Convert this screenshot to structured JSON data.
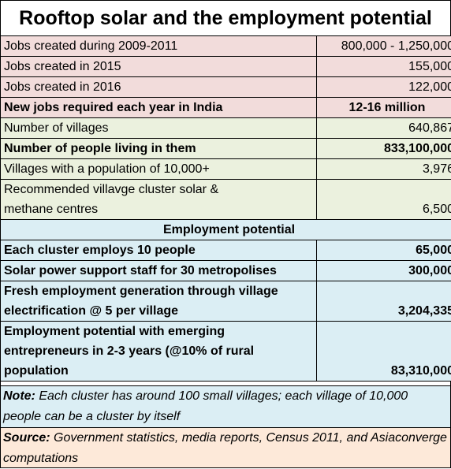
{
  "title": "Rooftop solar and the employment potential",
  "rows": [
    {
      "label": "Jobs created during 2009-2011",
      "value": "800,000 - 1,250,000"
    },
    {
      "label": "Jobs created in 2015",
      "value": "155,000"
    },
    {
      "label": "Jobs created in 2016",
      "value": "122,000"
    },
    {
      "label": "New jobs required each year  in India",
      "value": "12-16 million"
    },
    {
      "label": "Number of villages",
      "value": "640,867"
    },
    {
      "label": "Number of people living in them",
      "value": "833,100,000"
    },
    {
      "label": "Villages with a population of 10,000+",
      "value": "3,976"
    },
    {
      "label_line1": "Recommended villavge cluster solar &",
      "label_line2": "methane centres",
      "value": "6,500"
    },
    {
      "section_header": "Employment potential"
    },
    {
      "label": "Each cluster employs 10 people",
      "value": "65,000"
    },
    {
      "label": "Solar power support staff for 30 metropolises",
      "value": "300,000"
    },
    {
      "label_line1": "Fresh employment generation through village",
      "label_line2": "electrification @ 5 per village",
      "value": "3,204,335"
    },
    {
      "label_line1": "Employment potential with emerging",
      "label_line2": "entrepreneurs  in 2-3 years (@10% of rural",
      "label_line3": "population",
      "value": "83,310,000"
    }
  ],
  "note": {
    "prefix": "Note:",
    "text": "  Each cluster has around 100 small villages; each village of 10,000 people can be a cluster by itself"
  },
  "source": {
    "prefix": "Source:",
    "text": "  Government statistics, media reports, Census 2011, and Asiaconverge computations"
  },
  "colors": {
    "jobs_rows": "#f2dcdb",
    "village_rows": "#ebf1de",
    "employment_rows": "#dbeef4",
    "note_background": "#dbeef4",
    "source_background": "#fde9d9"
  }
}
